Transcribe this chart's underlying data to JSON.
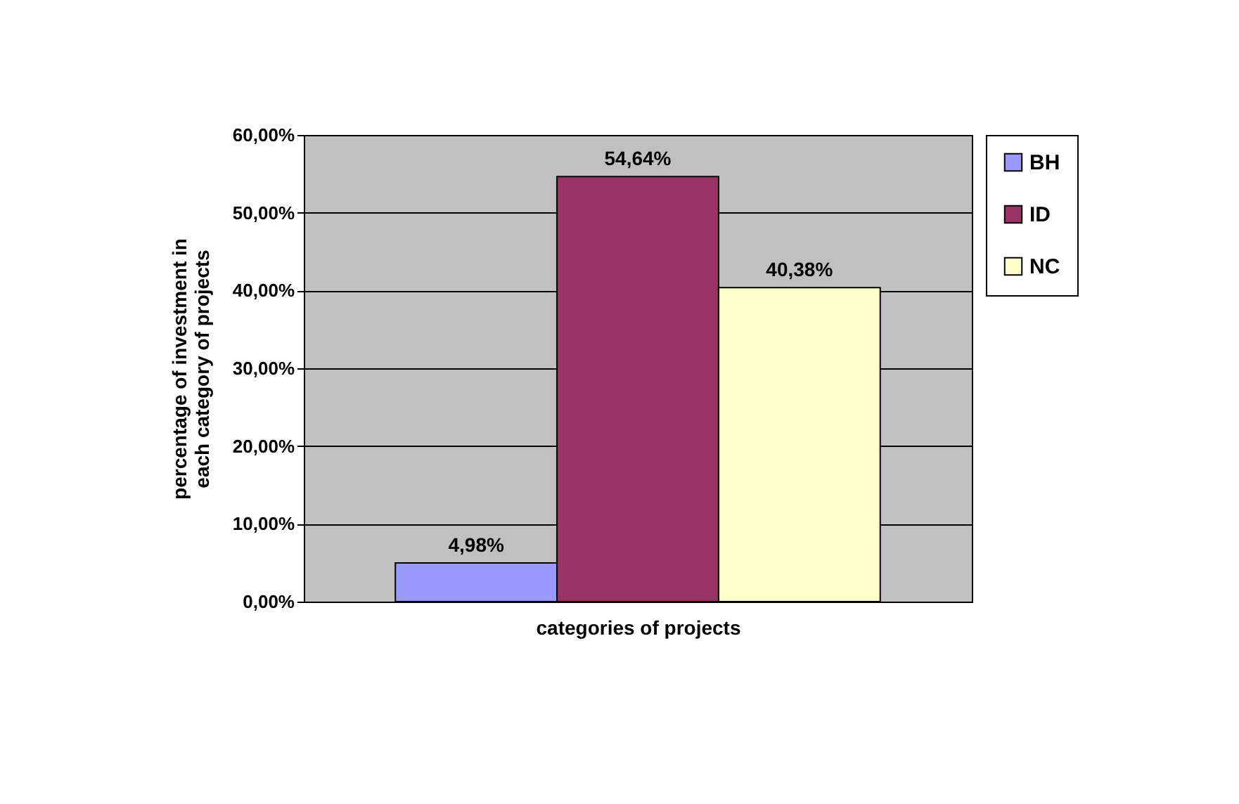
{
  "chart_data": {
    "type": "bar",
    "xlabel": "categories of projects",
    "ylabel": "percentage of investment in each category of projects",
    "categories": [
      null
    ],
    "series": [
      {
        "name": "BH",
        "color": "#9999ff",
        "values": [
          4.98
        ],
        "value_labels": [
          "4,98%"
        ]
      },
      {
        "name": "ID",
        "color": "#993366",
        "values": [
          54.64
        ],
        "value_labels": [
          "54,64%"
        ]
      },
      {
        "name": "NC",
        "color": "#ffffcc",
        "values": [
          40.38
        ],
        "value_labels": [
          "40,38%"
        ]
      }
    ],
    "ylim": [
      0,
      60
    ],
    "yticks": [
      {
        "value": 0,
        "label": "0,00%"
      },
      {
        "value": 10,
        "label": "10,00%"
      },
      {
        "value": 20,
        "label": "20,00%"
      },
      {
        "value": 30,
        "label": "30,00%"
      },
      {
        "value": 40,
        "label": "40,00%"
      },
      {
        "value": 50,
        "label": "50,00%"
      },
      {
        "value": 60,
        "label": "60,00%"
      }
    ],
    "grid": "y",
    "legend": "right",
    "tick_labels": "y"
  }
}
